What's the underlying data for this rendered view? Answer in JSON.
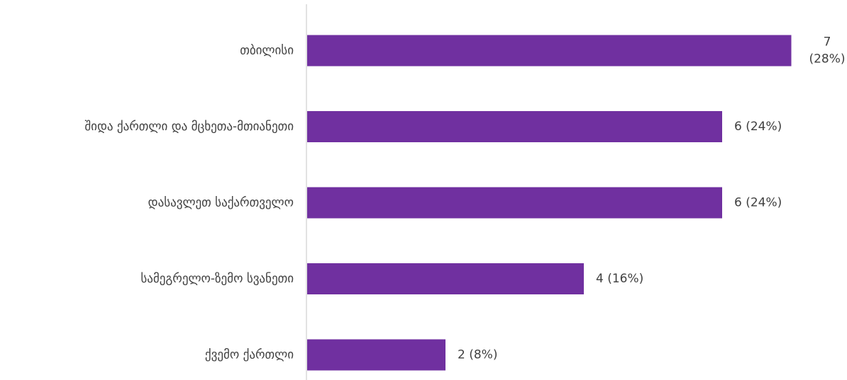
{
  "chart_data": {
    "type": "bar",
    "orientation": "horizontal",
    "categories": [
      "თბილისი",
      "შიდა ქართლი და მცხეთა-მთიანეთი",
      "დასავლეთ საქართველო",
      "სამეგრელო-ზემო სვანეთი",
      "ქვემო ქართლი"
    ],
    "values": [
      7,
      6,
      6,
      4,
      2
    ],
    "percents": [
      "28%",
      "24%",
      "24%",
      "16%",
      "8%"
    ],
    "data_labels": [
      "7 (28%)",
      "6 (24%)",
      "6 (24%)",
      "4 (16%)",
      "2 (8%)"
    ],
    "xlim": [
      0,
      7
    ],
    "grid": false,
    "legend": "none",
    "colors": {
      "bar": "#7030A0",
      "axis": "#D9D9D9",
      "text": "#404040"
    }
  }
}
